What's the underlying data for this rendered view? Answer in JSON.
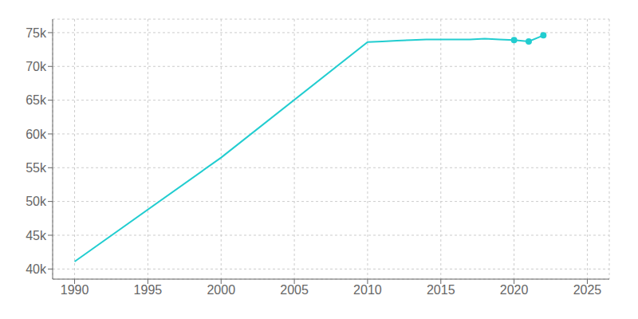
{
  "chart_data": {
    "type": "line",
    "x": [
      1990,
      2000,
      2010,
      2011,
      2012,
      2013,
      2014,
      2015,
      2016,
      2017,
      2018,
      2019,
      2020,
      2021,
      2022
    ],
    "series": [
      {
        "type": "line",
        "color": "#22CDD0",
        "values": [
          41100,
          56500,
          73600,
          73700,
          73800,
          73900,
          74000,
          74000,
          74000,
          74000,
          74100,
          74000,
          73900,
          73700,
          74600
        ]
      },
      {
        "type": "scatter",
        "marker": "circle",
        "color": "#22CDD0",
        "values": [
          null,
          null,
          null,
          null,
          null,
          null,
          null,
          null,
          null,
          null,
          null,
          null,
          73900,
          73700,
          74600
        ]
      }
    ],
    "xlim": [
      1988.5,
      2026.5
    ],
    "xticks": [
      1990,
      1995,
      2000,
      2005,
      2010,
      2015,
      2020,
      2025
    ],
    "ylim": [
      38500,
      77000
    ],
    "yticks": [
      {
        "value": 40000,
        "label": "40k"
      },
      {
        "value": 45000,
        "label": "45k"
      },
      {
        "value": 50000,
        "label": "50k"
      },
      {
        "value": 55000,
        "label": "55k"
      },
      {
        "value": 60000,
        "label": "60k"
      },
      {
        "value": 65000,
        "label": "65k"
      },
      {
        "value": 70000,
        "label": "70k"
      },
      {
        "value": 75000,
        "label": "75k"
      }
    ],
    "grid": true
  }
}
